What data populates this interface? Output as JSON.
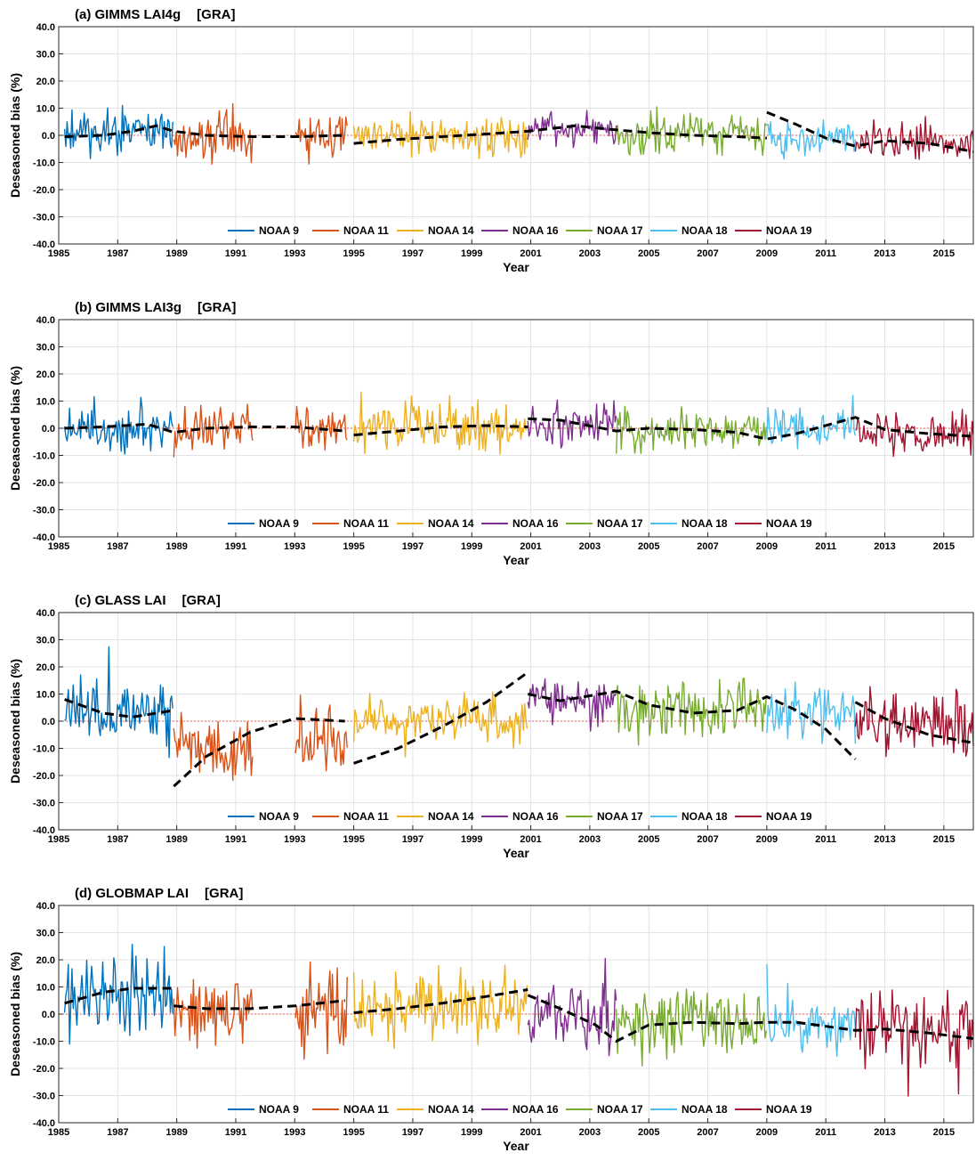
{
  "chart_data": [
    {
      "type": "line",
      "title": "(a) GIMMS LAI4g [GRA]",
      "title_parts": [
        "(a) GIMMS LAI4g",
        "[GRA]"
      ],
      "xlabel": "Year",
      "ylabel": "Deseasoned bias (%)",
      "xlim": [
        1985,
        2016
      ],
      "ylim": [
        -40,
        40
      ],
      "yticks": [
        "40.0",
        "30.0",
        "20.0",
        "10.0",
        "0.0",
        "-10.0",
        "-20.0",
        "-30.0",
        "-40.0"
      ],
      "xticks": [
        "1985",
        "1987",
        "1989",
        "1991",
        "1993",
        "1995",
        "1997",
        "1999",
        "2001",
        "2003",
        "2005",
        "2007",
        "2009",
        "2011",
        "2013",
        "2015"
      ],
      "grid": true,
      "legend": "bottom-center",
      "series": [
        {
          "name": "NOAA 9",
          "color": "#0072BD",
          "x_range": [
            1985.2,
            1988.9
          ],
          "level": 1.0,
          "amp": 7
        },
        {
          "name": "NOAA 11",
          "color": "#D95319",
          "x_range": [
            1988.9,
            1994.8
          ],
          "level": -0.5,
          "amp": 7,
          "gap": [
            1991.6,
            1993.0
          ]
        },
        {
          "name": "NOAA 14",
          "color": "#EDB120",
          "x_range": [
            1995.0,
            2000.9
          ],
          "level": -0.5,
          "amp": 6
        },
        {
          "name": "NOAA 16",
          "color": "#7E2F8E",
          "x_range": [
            2000.9,
            2003.9
          ],
          "level": 2.5,
          "amp": 5
        },
        {
          "name": "NOAA 17",
          "color": "#77AC30",
          "x_range": [
            2003.9,
            2009.0
          ],
          "level": 0.5,
          "amp": 6
        },
        {
          "name": "NOAA 18",
          "color": "#4DBEEE",
          "x_range": [
            2009.0,
            2012.0
          ],
          "level": -1.0,
          "amp": 6
        },
        {
          "name": "NOAA 19",
          "color": "#A2142F",
          "x_range": [
            2012.0,
            2016.0
          ],
          "level": -2.5,
          "amp": 5
        }
      ],
      "trends": [
        [
          [
            1985.2,
            -0.5
          ],
          [
            1986.5,
            0
          ],
          [
            1987.5,
            1.5
          ],
          [
            1988.3,
            3.5
          ],
          [
            1988.9,
            1.5
          ],
          [
            1990,
            0
          ],
          [
            1991.5,
            -0.5
          ],
          [
            1993,
            -0.5
          ],
          [
            1994.7,
            0
          ]
        ],
        [
          [
            1995.0,
            -3
          ],
          [
            1996.5,
            -1.5
          ],
          [
            1998,
            -0.5
          ],
          [
            1999.5,
            0.5
          ],
          [
            2000.9,
            1.5
          ],
          [
            2002.5,
            3.5
          ],
          [
            2003.9,
            2
          ],
          [
            2005,
            1
          ],
          [
            2006.5,
            0
          ],
          [
            2008,
            -0.5
          ],
          [
            2009.0,
            -1
          ]
        ],
        [
          [
            2009.0,
            8.5
          ],
          [
            2010,
            4
          ],
          [
            2011,
            -1
          ],
          [
            2012.0,
            -4
          ],
          [
            2013,
            -2
          ],
          [
            2014.5,
            -3
          ],
          [
            2016,
            -6
          ]
        ]
      ]
    },
    {
      "type": "line",
      "title": "(b) GIMMS LAI3g [GRA]",
      "title_parts": [
        "(b) GIMMS LAI3g",
        "[GRA]"
      ],
      "xlabel": "Year",
      "ylabel": "Deseasoned bias (%)",
      "xlim": [
        1985,
        2016
      ],
      "ylim": [
        -40,
        40
      ],
      "yticks": [
        "40.0",
        "30.0",
        "20.0",
        "10.0",
        "0.0",
        "-10.0",
        "-20.0",
        "-30.0",
        "-40.0"
      ],
      "xticks": [
        "1985",
        "1987",
        "1989",
        "1991",
        "1993",
        "1995",
        "1997",
        "1999",
        "2001",
        "2003",
        "2005",
        "2007",
        "2009",
        "2011",
        "2013",
        "2015"
      ],
      "grid": true,
      "legend": "bottom-center",
      "series": [
        {
          "name": "NOAA 9",
          "color": "#0072BD",
          "x_range": [
            1985.2,
            1988.9
          ],
          "level": 1.0,
          "amp": 8
        },
        {
          "name": "NOAA 11",
          "color": "#D95319",
          "x_range": [
            1988.9,
            1994.8
          ],
          "level": 0.0,
          "amp": 7,
          "gap": [
            1991.6,
            1993.0
          ]
        },
        {
          "name": "NOAA 14",
          "color": "#EDB120",
          "x_range": [
            1995.0,
            2000.9
          ],
          "level": 0.0,
          "amp": 7
        },
        {
          "name": "NOAA 16",
          "color": "#7E2F8E",
          "x_range": [
            2000.9,
            2003.9
          ],
          "level": 2.0,
          "amp": 7
        },
        {
          "name": "NOAA 17",
          "color": "#77AC30",
          "x_range": [
            2003.9,
            2009.0
          ],
          "level": -1.0,
          "amp": 6
        },
        {
          "name": "NOAA 18",
          "color": "#4DBEEE",
          "x_range": [
            2009.0,
            2012.0
          ],
          "level": 0.0,
          "amp": 7
        },
        {
          "name": "NOAA 19",
          "color": "#A2142F",
          "x_range": [
            2012.0,
            2016.0
          ],
          "level": -2.0,
          "amp": 6
        }
      ],
      "trends": [
        [
          [
            1985.2,
            0
          ],
          [
            1986.5,
            0.5
          ],
          [
            1988.0,
            1.5
          ],
          [
            1988.9,
            -1.5
          ],
          [
            1990,
            0
          ],
          [
            1991.5,
            0.5
          ],
          [
            1993,
            0.5
          ],
          [
            1994.7,
            -1
          ]
        ],
        [
          [
            1995.0,
            -2.5
          ],
          [
            1996.5,
            -1
          ],
          [
            1998,
            0.5
          ],
          [
            1999.5,
            1
          ],
          [
            2000.9,
            0.5
          ]
        ],
        [
          [
            2000.9,
            3.5
          ],
          [
            2002,
            3
          ],
          [
            2003.9,
            -1
          ],
          [
            2005,
            0
          ],
          [
            2006.5,
            -0.5
          ],
          [
            2008,
            -1.5
          ],
          [
            2009.0,
            -4
          ],
          [
            2010,
            -2
          ],
          [
            2012.0,
            4
          ],
          [
            2013,
            -0.5
          ],
          [
            2014.5,
            -2
          ],
          [
            2016,
            -3
          ]
        ]
      ]
    },
    {
      "type": "line",
      "title": "(c) GLASS LAI [GRA]",
      "title_parts": [
        "(c) GLASS LAI",
        "[GRA]"
      ],
      "xlabel": "Year",
      "ylabel": "Deseasoned bias (%)",
      "xlim": [
        1985,
        2016
      ],
      "ylim": [
        -40,
        40
      ],
      "yticks": [
        "40.0",
        "30.0",
        "20.0",
        "10.0",
        "0.0",
        "-10.0",
        "-20.0",
        "-30.0",
        "-40.0"
      ],
      "xticks": [
        "1985",
        "1987",
        "1989",
        "1991",
        "1993",
        "1995",
        "1997",
        "1999",
        "2001",
        "2003",
        "2005",
        "2007",
        "2009",
        "2011",
        "2013",
        "2015"
      ],
      "grid": true,
      "legend": "bottom-center",
      "series": [
        {
          "name": "NOAA 9",
          "color": "#0072BD",
          "x_range": [
            1985.2,
            1988.9
          ],
          "level": 3.0,
          "amp": 10
        },
        {
          "name": "NOAA 11",
          "color": "#D95319",
          "x_range": [
            1988.9,
            1994.8
          ],
          "level": -8.0,
          "amp": 10,
          "gap": [
            1991.6,
            1993.0
          ]
        },
        {
          "name": "NOAA 14",
          "color": "#EDB120",
          "x_range": [
            1995.0,
            2000.9
          ],
          "level": 0.0,
          "amp": 8
        },
        {
          "name": "NOAA 16",
          "color": "#7E2F8E",
          "x_range": [
            2000.9,
            2003.9
          ],
          "level": 8.0,
          "amp": 7
        },
        {
          "name": "NOAA 17",
          "color": "#77AC30",
          "x_range": [
            2003.9,
            2009.0
          ],
          "level": 4.0,
          "amp": 9
        },
        {
          "name": "NOAA 18",
          "color": "#4DBEEE",
          "x_range": [
            2009.0,
            2012.0
          ],
          "level": 2.0,
          "amp": 8
        },
        {
          "name": "NOAA 19",
          "color": "#A2142F",
          "x_range": [
            2012.0,
            2016.0
          ],
          "level": -2.0,
          "amp": 10
        }
      ],
      "trends": [
        [
          [
            1985.2,
            8
          ],
          [
            1986.5,
            3
          ],
          [
            1987.5,
            1.5
          ],
          [
            1988.9,
            4
          ]
        ],
        [
          [
            1988.9,
            -24
          ],
          [
            1990,
            -13
          ],
          [
            1991.5,
            -4
          ],
          [
            1993,
            1
          ],
          [
            1994.7,
            0
          ]
        ],
        [
          [
            1995.0,
            -15.5
          ],
          [
            1996.5,
            -10
          ],
          [
            1998,
            -2
          ],
          [
            1999.5,
            7
          ],
          [
            2000.9,
            18
          ]
        ],
        [
          [
            2000.9,
            10
          ],
          [
            2002,
            7.5
          ],
          [
            2003.9,
            11
          ],
          [
            2005,
            6
          ],
          [
            2006.5,
            3
          ],
          [
            2008,
            4
          ],
          [
            2009.0,
            9
          ],
          [
            2010,
            4
          ],
          [
            2011,
            -3
          ],
          [
            2012.0,
            -14
          ]
        ],
        [
          [
            2012.0,
            7
          ],
          [
            2013,
            1
          ],
          [
            2014.5,
            -5
          ],
          [
            2016,
            -8
          ]
        ]
      ]
    },
    {
      "type": "line",
      "title": "(d) GLOBMAP LAI [GRA]",
      "title_parts": [
        "(d) GLOBMAP LAI",
        "[GRA]"
      ],
      "xlabel": "Year",
      "ylabel": "Deseasoned bias (%)",
      "xlim": [
        1985,
        2016
      ],
      "ylim": [
        -40,
        40
      ],
      "yticks": [
        "40.0",
        "30.0",
        "20.0",
        "10.0",
        "0.0",
        "-10.0",
        "-20.0",
        "-30.0",
        "-40.0"
      ],
      "xticks": [
        "1985",
        "1987",
        "1989",
        "1991",
        "1993",
        "1995",
        "1997",
        "1999",
        "2001",
        "2003",
        "2005",
        "2007",
        "2009",
        "2011",
        "2013",
        "2015"
      ],
      "grid": true,
      "legend": "bottom-center",
      "series": [
        {
          "name": "NOAA 9",
          "color": "#0072BD",
          "x_range": [
            1985.2,
            1988.9
          ],
          "level": 7.0,
          "amp": 13
        },
        {
          "name": "NOAA 11",
          "color": "#D95319",
          "x_range": [
            1988.9,
            1994.8
          ],
          "level": 2.0,
          "amp": 12,
          "gap": [
            1991.6,
            1993.0
          ]
        },
        {
          "name": "NOAA 14",
          "color": "#EDB120",
          "x_range": [
            1995.0,
            2000.9
          ],
          "level": 3.0,
          "amp": 11
        },
        {
          "name": "NOAA 16",
          "color": "#7E2F8E",
          "x_range": [
            2000.9,
            2003.9
          ],
          "level": 0.0,
          "amp": 11
        },
        {
          "name": "NOAA 17",
          "color": "#77AC30",
          "x_range": [
            2003.9,
            2009.0
          ],
          "level": -3.0,
          "amp": 11
        },
        {
          "name": "NOAA 18",
          "color": "#4DBEEE",
          "x_range": [
            2009.0,
            2012.0
          ],
          "level": -4.0,
          "amp": 9
        },
        {
          "name": "NOAA 19",
          "color": "#A2142F",
          "x_range": [
            2012.0,
            2016.0
          ],
          "level": -6.0,
          "amp": 11
        }
      ],
      "trends": [
        [
          [
            1985.2,
            4
          ],
          [
            1986.5,
            8
          ],
          [
            1987.5,
            9.5
          ],
          [
            1988.9,
            9.5
          ]
        ],
        [
          [
            1988.9,
            3
          ],
          [
            1990,
            2
          ],
          [
            1991.5,
            2
          ],
          [
            1993,
            3
          ],
          [
            1994.7,
            5
          ]
        ],
        [
          [
            1995.0,
            0.5
          ],
          [
            1996.5,
            2
          ],
          [
            1998,
            4
          ],
          [
            1999.5,
            6.5
          ],
          [
            2000.9,
            9
          ]
        ],
        [
          [
            2000.9,
            7
          ],
          [
            2002,
            2
          ],
          [
            2003.2,
            -4
          ],
          [
            2003.9,
            -10
          ],
          [
            2005,
            -4
          ],
          [
            2006.5,
            -3
          ],
          [
            2008,
            -3.5
          ],
          [
            2009.0,
            -3
          ],
          [
            2010,
            -3
          ],
          [
            2011,
            -4.5
          ],
          [
            2012.0,
            -6
          ],
          [
            2013,
            -5.5
          ],
          [
            2014.5,
            -7
          ],
          [
            2016,
            -9
          ]
        ]
      ]
    }
  ]
}
